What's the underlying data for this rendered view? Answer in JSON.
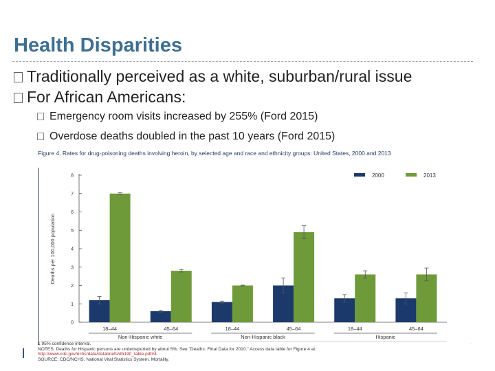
{
  "slide": {
    "title": "Health Disparities",
    "bullets": [
      "Traditionally perceived as a white, suburban/rural issue",
      "For African Americans:"
    ],
    "subbullets": [
      "Emergency room visits increased by 255% (Ford 2015)",
      "Overdose deaths doubled in the past 10 years (Ford 2015)"
    ]
  },
  "colors": {
    "title": "#3f6f90",
    "series_2000": "#1b3a6b",
    "series_2013": "#6f9a3a",
    "figure_accent": "#243a60"
  },
  "chart_data": {
    "type": "bar",
    "title": "Figure 4. Rates for drug-poisoning deaths involving heroin, by selected age and race and ethnicity groups: United States, 2000 and 2013",
    "ylabel": "Deaths per 100,000 population",
    "xlabel": "",
    "ylim": [
      0,
      8
    ],
    "yticks": [
      "0",
      "1",
      "2",
      "3",
      "4",
      "5",
      "6",
      "7",
      "8"
    ],
    "categories": [
      "18–44",
      "45–64",
      "18–44",
      "45–64",
      "18–44",
      "45–64"
    ],
    "groups": [
      "Non-Hispanic white",
      "Non-Hispanic black",
      "Hispanic"
    ],
    "series": [
      {
        "name": "2000",
        "values": [
          1.2,
          0.6,
          1.1,
          2.0,
          1.3,
          1.3
        ],
        "error": [
          0.2,
          0.05,
          0.05,
          0.4,
          0.2,
          0.3
        ]
      },
      {
        "name": "2013",
        "values": [
          7.0,
          2.8,
          2.0,
          4.9,
          2.6,
          2.6
        ],
        "error": [
          0.05,
          0.07,
          0.02,
          0.35,
          0.2,
          0.35
        ]
      }
    ],
    "legend": [
      "2000",
      "2013"
    ],
    "legend_position": "top-right",
    "grid": false
  },
  "figure_notes": [
    "1 95% confidence interval.",
    "NOTES: Deaths for Hispanic persons are underreported by about 5%. See \"Deaths: Final Data for 2010.\" Access data table for Figure 4 at:",
    "http://www.cdc.gov/nchs/data/databriefs/db190_table.pdf#4.",
    "SOURCE: CDC/NCHS, National Vital Statistics System, Mortality."
  ]
}
